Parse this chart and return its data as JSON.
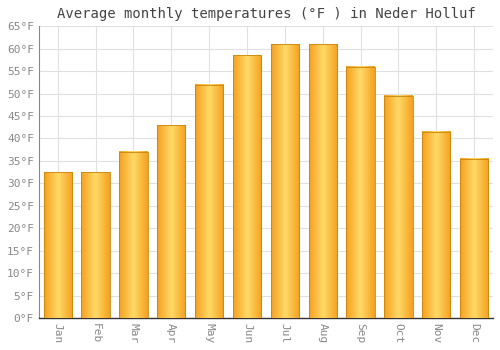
{
  "title": "Average monthly temperatures (°F ) in Neder Holluf",
  "months": [
    "Jan",
    "Feb",
    "Mar",
    "Apr",
    "May",
    "Jun",
    "Jul",
    "Aug",
    "Sep",
    "Oct",
    "Nov",
    "Dec"
  ],
  "values": [
    32.5,
    32.5,
    37,
    43,
    52,
    58.5,
    61,
    61,
    56,
    49.5,
    41.5,
    35.5
  ],
  "bar_color_center": "#FFD966",
  "bar_color_edge": "#F5A020",
  "ylim": [
    0,
    65
  ],
  "yticks": [
    0,
    5,
    10,
    15,
    20,
    25,
    30,
    35,
    40,
    45,
    50,
    55,
    60,
    65
  ],
  "ytick_labels": [
    "0°F",
    "5°F",
    "10°F",
    "15°F",
    "20°F",
    "25°F",
    "30°F",
    "35°F",
    "40°F",
    "45°F",
    "50°F",
    "55°F",
    "60°F",
    "65°F"
  ],
  "background_color": "#ffffff",
  "grid_color": "#e0e0e0",
  "title_fontsize": 10,
  "tick_fontsize": 8
}
